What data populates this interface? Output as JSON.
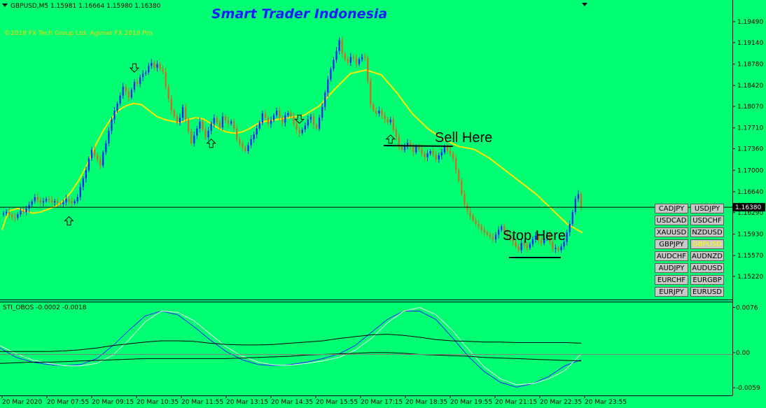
{
  "window": {
    "symbol_info": "GBPUSD,M5  1.15981 1.16664 1.15980 1.16380",
    "brand_title": "Smart Trader Indonesia",
    "copyright": "©2018 FX Tech Group Ltd. Agimat FX 2018 Pro",
    "indicator_label": "STI_OBOS -0.0002 -0.0018"
  },
  "annotations": {
    "sell": "Sell Here",
    "stop": "Stop Here"
  },
  "symbols": [
    {
      "label": "CADJPY",
      "active": false
    },
    {
      "label": "USDJPY",
      "active": false
    },
    {
      "label": "USDCAD",
      "active": false
    },
    {
      "label": "USDCHF",
      "active": false
    },
    {
      "label": "XAUUSD",
      "active": false
    },
    {
      "label": "NZDUSD",
      "active": false
    },
    {
      "label": "GBPJPY",
      "active": false
    },
    {
      "label": "GBPUSD",
      "active": true
    },
    {
      "label": "AUDCHF",
      "active": false
    },
    {
      "label": "AUDNZD",
      "active": false
    },
    {
      "label": "AUDJPY",
      "active": false
    },
    {
      "label": "AUDUSD",
      "active": false
    },
    {
      "label": "EURCHF",
      "active": false
    },
    {
      "label": "EURGBP",
      "active": false
    },
    {
      "label": "EURJPY",
      "active": false
    },
    {
      "label": "EURUSD",
      "active": false
    }
  ],
  "colors": {
    "background": "#00ff73",
    "bull": "#1a1aff",
    "bear": "#d2691e",
    "ma": "#ffe600",
    "brand": "#1a1aff",
    "copyright": "#ffd200"
  },
  "chart_data": {
    "type": "candlestick",
    "symbol": "GBPUSD",
    "timeframe": "M5",
    "ohlc_header": {
      "open": 1.15981,
      "high": 1.16664,
      "low": 1.1598,
      "close": 1.1638
    },
    "current_price": 1.1638,
    "price_ticks": [
      1.1949,
      1.1914,
      1.1878,
      1.1842,
      1.1807,
      1.1771,
      1.1736,
      1.17,
      1.1664,
      1.1629,
      1.1593,
      1.1557,
      1.1522
    ],
    "time_ticks": [
      "20 Mar 2020",
      "20 Mar 07:55",
      "20 Mar 09:15",
      "20 Mar 10:35",
      "20 Mar 11:55",
      "20 Mar 13:15",
      "20 Mar 14:35",
      "20 Mar 15:55",
      "20 Mar 17:15",
      "20 Mar 18:35",
      "20 Mar 19:55",
      "20 Mar 21:15",
      "20 Mar 22:35",
      "20 Mar 23:55"
    ],
    "close_series": [
      1.1628,
      1.163,
      1.1625,
      1.1622,
      1.162,
      1.1626,
      1.1632,
      1.163,
      1.1636,
      1.1642,
      1.1648,
      1.1655,
      1.165,
      1.1646,
      1.1648,
      1.1652,
      1.165,
      1.1646,
      1.1648,
      1.1645,
      1.1643,
      1.1646,
      1.1652,
      1.1648,
      1.1645,
      1.1648,
      1.1655,
      1.1672,
      1.1686,
      1.17,
      1.172,
      1.1734,
      1.1725,
      1.1718,
      1.1708,
      1.173,
      1.1745,
      1.1766,
      1.1785,
      1.18,
      1.1812,
      1.1825,
      1.184,
      1.1832,
      1.1822,
      1.1835,
      1.1848,
      1.1845,
      1.1856,
      1.1862,
      1.1864,
      1.1875,
      1.188,
      1.1872,
      1.1878,
      1.187,
      1.1865,
      1.184,
      1.182,
      1.18,
      1.179,
      1.178,
      1.1788,
      1.1806,
      1.1785,
      1.1765,
      1.1745,
      1.1758,
      1.177,
      1.1782,
      1.1768,
      1.1755,
      1.1766,
      1.1778,
      1.1788,
      1.178,
      1.1772,
      1.179,
      1.1784,
      1.1778,
      1.1782,
      1.177,
      1.1752,
      1.1744,
      1.1738,
      1.1732,
      1.1742,
      1.1752,
      1.176,
      1.177,
      1.178,
      1.1795,
      1.1788,
      1.1778,
      1.1784,
      1.1792,
      1.18,
      1.1788,
      1.178,
      1.1792,
      1.1796,
      1.179,
      1.1778,
      1.1768,
      1.1762,
      1.1768,
      1.1775,
      1.1785,
      1.179,
      1.1776,
      1.177,
      1.1788,
      1.1806,
      1.183,
      1.1852,
      1.187,
      1.1885,
      1.19,
      1.1918,
      1.1896,
      1.1886,
      1.188,
      1.189,
      1.1888,
      1.1878,
      1.1886,
      1.189,
      1.1888,
      1.185,
      1.181,
      1.18,
      1.1795,
      1.18,
      1.1792,
      1.1786,
      1.178,
      1.1785,
      1.1768,
      1.1756,
      1.174,
      1.1734,
      1.174,
      1.1746,
      1.174,
      1.173,
      1.174,
      1.1735,
      1.1728,
      1.1722,
      1.1728,
      1.1732,
      1.1726,
      1.1718,
      1.1725,
      1.173,
      1.174,
      1.1732,
      1.1728,
      1.172,
      1.17,
      1.1682,
      1.166,
      1.1642,
      1.1632,
      1.1624,
      1.1616,
      1.161,
      1.1606,
      1.16,
      1.1596,
      1.1592,
      1.1588,
      1.1584,
      1.1592,
      1.16,
      1.1606,
      1.1596,
      1.159,
      1.1586,
      1.158,
      1.1572,
      1.1566,
      1.1578,
      1.1574,
      1.157,
      1.1576,
      1.1584,
      1.159,
      1.1582,
      1.1578,
      1.1586,
      1.1592,
      1.158,
      1.1568,
      1.157,
      1.1566,
      1.1572,
      1.158,
      1.1596,
      1.161,
      1.163,
      1.1652,
      1.166,
      1.1638
    ],
    "moving_average": [
      1.16,
      1.162,
      1.1632,
      1.1636,
      1.1632,
      1.1628,
      1.163,
      1.1635,
      1.164,
      1.165,
      1.1665,
      1.1685,
      1.171,
      1.174,
      1.1765,
      1.1785,
      1.18,
      1.1808,
      1.1812,
      1.181,
      1.18,
      1.179,
      1.1785,
      1.1782,
      1.178,
      1.1785,
      1.1788,
      1.1786,
      1.1778,
      1.177,
      1.1764,
      1.1762,
      1.1764,
      1.177,
      1.1778,
      1.1782,
      1.1784,
      1.1786,
      1.1788,
      1.179,
      1.1792,
      1.1808,
      1.1836,
      1.1862,
      1.1868,
      1.186,
      1.183,
      1.1795,
      1.177,
      1.1752,
      1.174,
      1.1735,
      1.172,
      1.17,
      1.168,
      1.166,
      1.1635,
      1.161,
      1.1595
    ],
    "ma_x": [
      0,
      1,
      2,
      4,
      6,
      8,
      10,
      12,
      14,
      16,
      18,
      20,
      22,
      24,
      26,
      28,
      30,
      32,
      34,
      36,
      38,
      40,
      42,
      44,
      46,
      48,
      50,
      52,
      54,
      56,
      58,
      60,
      62,
      64,
      66,
      68,
      70,
      72,
      74,
      76,
      78,
      82,
      86,
      90,
      94,
      98,
      102,
      106,
      110,
      114,
      118,
      122,
      126,
      130,
      134,
      138,
      142,
      146,
      150
    ],
    "signals": [
      {
        "type": "sell",
        "bar": 46
      },
      {
        "type": "buy",
        "bar": 23
      },
      {
        "type": "buy",
        "bar": 73
      },
      {
        "type": "sell",
        "bar": 104
      },
      {
        "type": "buy",
        "bar": 136
      }
    ],
    "indicator": {
      "name": "STI_OBOS",
      "values": [
        -0.0002,
        -0.0018
      ],
      "y_ticks": [
        0.0076,
        0.0,
        -0.0059
      ],
      "ylim": [
        -0.0066,
        0.008
      ],
      "series": [
        {
          "name": "blue",
          "color": "#2020ff",
          "points": [
            0.0008,
            -0.0008,
            -0.0016,
            -0.002,
            -0.0022,
            -0.002,
            -0.001,
            0.0012,
            0.0038,
            0.0062,
            0.007,
            0.0064,
            0.0044,
            0.0022,
            0.0002,
            -0.0012,
            -0.002,
            -0.0022,
            -0.002,
            -0.0016,
            -0.001,
            -0.0002,
            0.0012,
            0.0034,
            0.0056,
            0.007,
            0.007,
            0.0056,
            0.0026,
            -0.0006,
            -0.0032,
            -0.005,
            -0.0058,
            -0.0052,
            -0.004,
            -0.0022,
            -0.0012
          ]
        },
        {
          "name": "white",
          "color": "#e6ffe6",
          "points": [
            0.0012,
            -0.0002,
            -0.0012,
            -0.0018,
            -0.0022,
            -0.0022,
            -0.0018,
            -0.0004,
            0.0022,
            0.0052,
            0.007,
            0.0068,
            0.0054,
            0.0032,
            0.001,
            -0.0006,
            -0.0016,
            -0.0021,
            -0.0021,
            -0.0018,
            -0.0014,
            -0.0008,
            0.0004,
            0.0024,
            0.005,
            0.007,
            0.0076,
            0.0064,
            0.0038,
            0.0006,
            -0.0024,
            -0.0044,
            -0.0054,
            -0.0052,
            -0.0044,
            -0.003,
            -0.0002
          ]
        },
        {
          "name": "black-upper",
          "color": "#000000",
          "points": [
            0.0002,
            0.0002,
            0.0002,
            0.0002,
            0.0003,
            0.0005,
            0.0008,
            0.0012,
            0.0015,
            0.0018,
            0.002,
            0.002,
            0.0019,
            0.0016,
            0.0014,
            0.0013,
            0.0013,
            0.0014,
            0.0016,
            0.0018,
            0.002,
            0.0024,
            0.0027,
            0.003,
            0.0031,
            0.0029,
            0.0026,
            0.0022,
            0.002,
            0.0019,
            0.0018,
            0.0018,
            0.0017,
            0.0017,
            0.0017,
            0.0017,
            0.0016
          ]
        },
        {
          "name": "black-lower",
          "color": "#000000",
          "points": [
            -0.0018,
            -0.0017,
            -0.0016,
            -0.0016,
            -0.0015,
            -0.0014,
            -0.0013,
            -0.0012,
            -0.0011,
            -0.001,
            -0.001,
            -0.001,
            -0.001,
            -0.001,
            -0.001,
            -0.0009,
            -0.0008,
            -0.0007,
            -0.0006,
            -0.0004,
            -0.0003,
            -0.0002,
            -0.0001,
            0.0,
            0.0,
            -0.0001,
            -0.0003,
            -0.0004,
            -0.0005,
            -0.0006,
            -0.0008,
            -0.0009,
            -0.001,
            -0.0011,
            -0.0012,
            -0.0013,
            -0.0014
          ]
        }
      ]
    }
  }
}
